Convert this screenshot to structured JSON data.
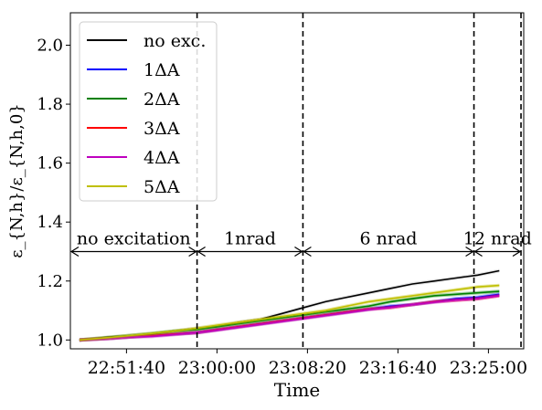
{
  "chart_data": {
    "type": "line",
    "xlabel": "Time",
    "ylabel": "ε_{N,h}/ε_{N,h,0}",
    "ylim": [
      0.97,
      2.11
    ],
    "yticks": [
      1.0,
      1.2,
      1.4,
      1.6,
      1.8,
      2.0
    ],
    "xlim": [
      "22:46:30",
      "23:28:15"
    ],
    "xticks": [
      "22:51:40",
      "23:00:00",
      "23:08:20",
      "23:16:40",
      "23:25:00"
    ],
    "grid": false,
    "legend_position": "top-left",
    "legend": [
      {
        "text": "no exc.",
        "color": "#000000"
      },
      {
        "text": "1ΔA",
        "color": "#0000ff"
      },
      {
        "text": "2ΔA",
        "color": "#008000"
      },
      {
        "text": "3ΔA",
        "color": "#ff0000"
      },
      {
        "text": "4ΔA",
        "color": "#bf00bf"
      },
      {
        "text": "5ΔA",
        "color": "#bfbf00"
      }
    ],
    "vlines": [
      "22:58:10",
      "23:07:55",
      "23:23:40",
      "23:28:00"
    ],
    "annotations": [
      {
        "text": "no excitation",
        "from": "22:46:30",
        "to": "22:58:10"
      },
      {
        "text": "1nrad",
        "from": "22:58:10",
        "to": "23:07:55"
      },
      {
        "text": "6 nrad",
        "from": "23:07:55",
        "to": "23:23:40"
      },
      {
        "text": "12 nrad",
        "from": "23:23:40",
        "to": "23:28:00"
      }
    ],
    "annotation_y": 1.3,
    "series": [
      {
        "name": "no exc.",
        "color": "#000000",
        "x": [
          "22:47:20",
          "22:50:00",
          "22:52:00",
          "22:54:00",
          "22:56:00",
          "22:58:10",
          "23:00:00",
          "23:02:00",
          "23:04:00",
          "23:06:00",
          "23:08:00",
          "23:10:00",
          "23:12:00",
          "23:14:00",
          "23:16:00",
          "23:18:00",
          "23:20:00",
          "23:22:00",
          "23:24:00",
          "23:26:00"
        ],
        "y": [
          1.0,
          1.01,
          1.015,
          1.02,
          1.03,
          1.04,
          1.045,
          1.06,
          1.07,
          1.09,
          1.11,
          1.13,
          1.145,
          1.16,
          1.175,
          1.19,
          1.2,
          1.21,
          1.22,
          1.235
        ]
      },
      {
        "name": "1ΔA",
        "color": "#0000ff",
        "x": [
          "22:47:20",
          "22:50:00",
          "22:52:00",
          "22:54:00",
          "22:56:00",
          "22:58:10",
          "23:00:00",
          "23:02:00",
          "23:04:00",
          "23:06:00",
          "23:08:00",
          "23:10:00",
          "23:12:00",
          "23:14:00",
          "23:16:00",
          "23:18:00",
          "23:20:00",
          "23:22:00",
          "23:24:00",
          "23:26:00"
        ],
        "y": [
          1.0,
          1.005,
          1.01,
          1.015,
          1.02,
          1.025,
          1.035,
          1.045,
          1.055,
          1.065,
          1.075,
          1.085,
          1.095,
          1.105,
          1.115,
          1.12,
          1.13,
          1.14,
          1.145,
          1.155
        ]
      },
      {
        "name": "2ΔA",
        "color": "#008000",
        "x": [
          "22:47:20",
          "22:50:00",
          "22:52:00",
          "22:54:00",
          "22:56:00",
          "22:58:10",
          "23:00:00",
          "23:02:00",
          "23:04:00",
          "23:06:00",
          "23:08:00",
          "23:10:00",
          "23:12:00",
          "23:14:00",
          "23:16:00",
          "23:18:00",
          "23:20:00",
          "23:22:00",
          "23:24:00",
          "23:26:00"
        ],
        "y": [
          1.0,
          1.008,
          1.015,
          1.022,
          1.03,
          1.035,
          1.045,
          1.055,
          1.065,
          1.075,
          1.085,
          1.095,
          1.105,
          1.115,
          1.13,
          1.14,
          1.15,
          1.155,
          1.16,
          1.165
        ]
      },
      {
        "name": "3ΔA",
        "color": "#ff0000",
        "x": [
          "22:47:20",
          "22:50:00",
          "22:52:00",
          "22:54:00",
          "22:56:00",
          "22:58:10",
          "23:00:00",
          "23:02:00",
          "23:04:00",
          "23:06:00",
          "23:08:00",
          "23:10:00",
          "23:12:00",
          "23:14:00",
          "23:16:00",
          "23:18:00",
          "23:20:00",
          "23:22:00",
          "23:24:00",
          "23:26:00"
        ],
        "y": [
          1.0,
          1.005,
          1.01,
          1.015,
          1.02,
          1.025,
          1.035,
          1.045,
          1.055,
          1.065,
          1.075,
          1.085,
          1.095,
          1.105,
          1.11,
          1.12,
          1.13,
          1.135,
          1.14,
          1.15
        ]
      },
      {
        "name": "4ΔA",
        "color": "#bf00bf",
        "x": [
          "22:47:20",
          "22:50:00",
          "22:52:00",
          "22:54:00",
          "22:56:00",
          "22:58:10",
          "23:00:00",
          "23:02:00",
          "23:04:00",
          "23:06:00",
          "23:08:00",
          "23:10:00",
          "23:12:00",
          "23:14:00",
          "23:16:00",
          "23:18:00",
          "23:20:00",
          "23:22:00",
          "23:24:00",
          "23:26:00"
        ],
        "y": [
          1.0,
          1.005,
          1.01,
          1.012,
          1.018,
          1.025,
          1.033,
          1.043,
          1.053,
          1.063,
          1.073,
          1.083,
          1.093,
          1.103,
          1.11,
          1.12,
          1.128,
          1.135,
          1.14,
          1.15
        ]
      },
      {
        "name": "5ΔA",
        "color": "#bfbf00",
        "x": [
          "22:47:20",
          "22:50:00",
          "22:52:00",
          "22:54:00",
          "22:56:00",
          "22:58:10",
          "23:00:00",
          "23:02:00",
          "23:04:00",
          "23:06:00",
          "23:08:00",
          "23:10:00",
          "23:12:00",
          "23:14:00",
          "23:16:00",
          "23:18:00",
          "23:20:00",
          "23:22:00",
          "23:24:00",
          "23:26:00"
        ],
        "y": [
          1.0,
          1.008,
          1.015,
          1.022,
          1.03,
          1.04,
          1.05,
          1.06,
          1.07,
          1.08,
          1.09,
          1.1,
          1.115,
          1.13,
          1.14,
          1.15,
          1.16,
          1.17,
          1.18,
          1.185
        ]
      }
    ]
  }
}
